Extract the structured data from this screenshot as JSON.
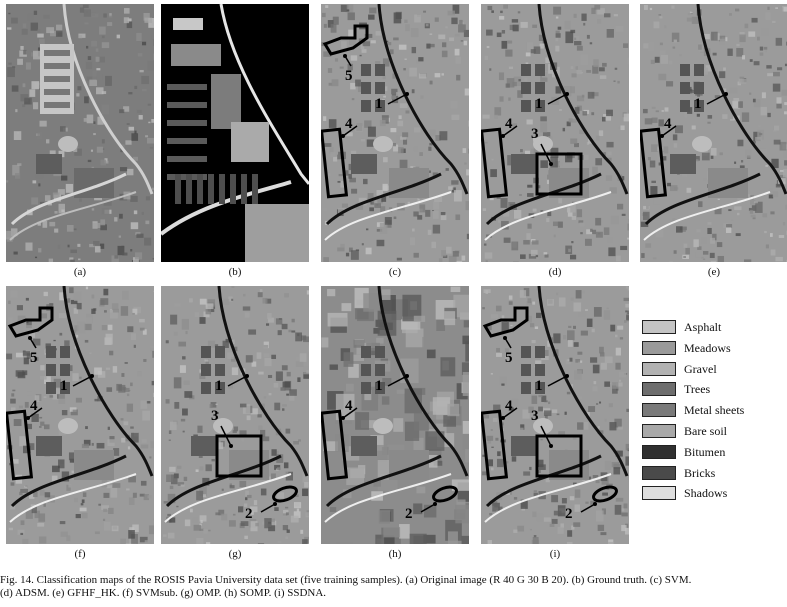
{
  "panels": [
    {
      "id": "a",
      "label": "(a)",
      "type": "original",
      "markers": []
    },
    {
      "id": "b",
      "label": "(b)",
      "type": "groundtruth",
      "markers": []
    },
    {
      "id": "c",
      "label": "(c)",
      "type": "class",
      "markers": [
        "1",
        "4",
        "5"
      ]
    },
    {
      "id": "d",
      "label": "(d)",
      "type": "class",
      "markers": [
        "1",
        "3",
        "4"
      ]
    },
    {
      "id": "e",
      "label": "(e)",
      "type": "class",
      "markers": [
        "1",
        "4"
      ]
    },
    {
      "id": "f",
      "label": "(f)",
      "type": "class",
      "markers": [
        "1",
        "4",
        "5"
      ]
    },
    {
      "id": "g",
      "label": "(g)",
      "type": "class",
      "markers": [
        "1",
        "2",
        "3"
      ]
    },
    {
      "id": "h",
      "label": "(h)",
      "type": "class",
      "markers": [
        "1",
        "2",
        "4"
      ]
    },
    {
      "id": "i",
      "label": "(i)",
      "type": "class",
      "markers": [
        "1",
        "2",
        "3",
        "4",
        "5"
      ]
    }
  ],
  "legend": [
    {
      "label": "Asphalt",
      "color": "#c4c4c4"
    },
    {
      "label": "Meadows",
      "color": "#9a9a9a"
    },
    {
      "label": "Gravel",
      "color": "#b2b2b2"
    },
    {
      "label": "Trees",
      "color": "#6e6e6e"
    },
    {
      "label": "Metal sheets",
      "color": "#7a7a7a"
    },
    {
      "label": "Bare soil",
      "color": "#a8a8a8"
    },
    {
      "label": "Bitumen",
      "color": "#303030"
    },
    {
      "label": "Bricks",
      "color": "#4a4a4a"
    },
    {
      "label": "Shadows",
      "color": "#dedede"
    }
  ],
  "caption": {
    "line1": "Fig. 14.  Classification maps of the ROSIS Pavia University data set (five training samples). (a) Original image (R 40 G 30 B 20). (b) Ground truth. (c) SVM.",
    "line2": "(d) ADSM. (e) GFHF_HK. (f) SVMsub. (g) OMP. (h) SOMP. (i) SSDNA."
  }
}
